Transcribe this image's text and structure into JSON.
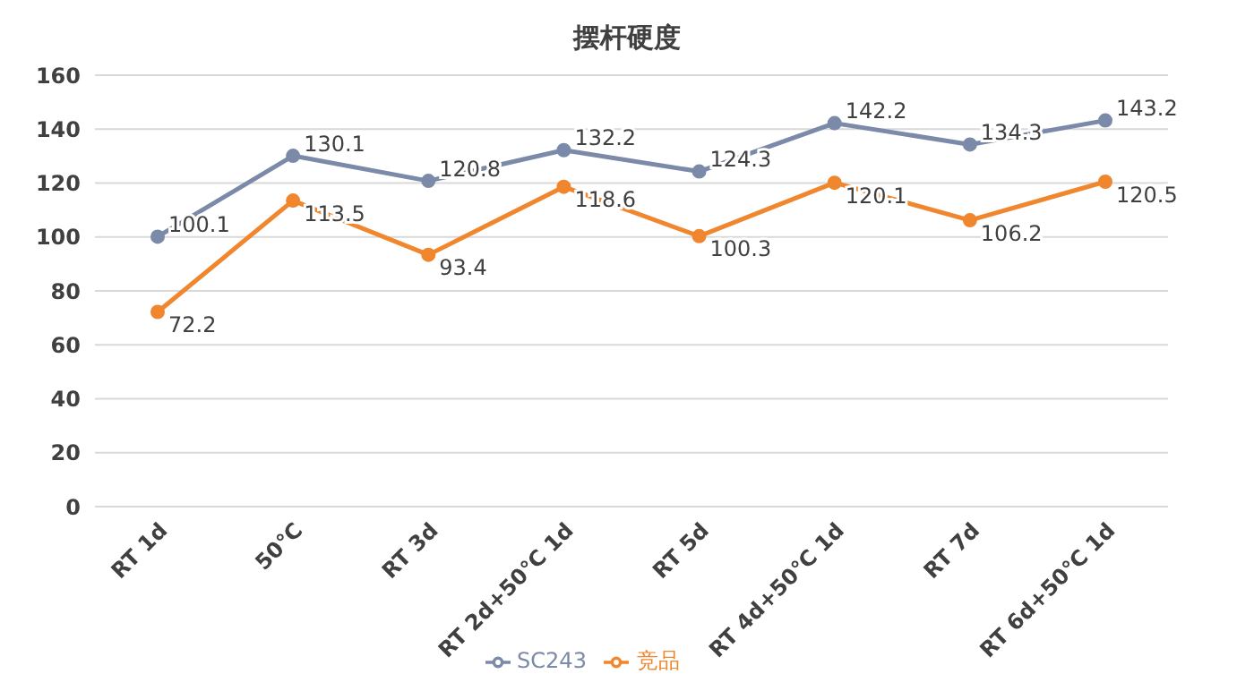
{
  "chart_data": {
    "type": "line",
    "title": "摆杆硬度",
    "categories": [
      "RT 1d",
      "50℃",
      "RT 3d",
      "RT 2d+50℃ 1d",
      "RT 5d",
      "RT 4d+50℃ 1d",
      "RT 7d",
      "RT 6d+50℃ 1d"
    ],
    "series": [
      {
        "name": "SC243",
        "color": "#7b8aa8",
        "values": [
          100.1,
          130.1,
          120.8,
          132.2,
          124.3,
          142.2,
          134.3,
          143.2
        ]
      },
      {
        "name": "竞品",
        "color": "#f0862d",
        "values": [
          72.2,
          113.5,
          93.4,
          118.6,
          100.3,
          120.1,
          106.2,
          120.5
        ]
      }
    ],
    "ylim": [
      0,
      160
    ],
    "yticks": [
      0,
      20,
      40,
      60,
      80,
      100,
      120,
      140,
      160
    ],
    "grid": "y",
    "legend": "bottom",
    "marker": "circle",
    "data_labels": true
  }
}
